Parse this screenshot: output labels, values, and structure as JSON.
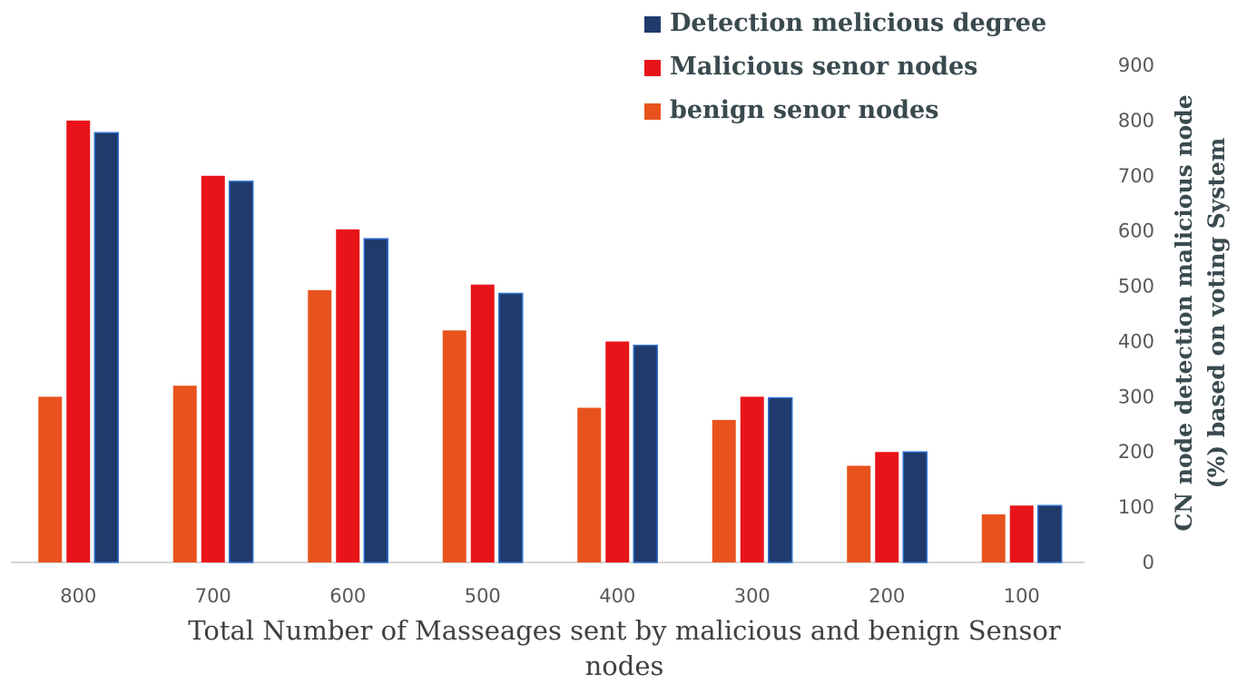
{
  "chart_data": {
    "type": "bar",
    "categories": [
      "800",
      "700",
      "600",
      "500",
      "400",
      "300",
      "200",
      "100"
    ],
    "series": [
      {
        "name": "benign senor nodes",
        "color": "#E8531D",
        "values": [
          300,
          320,
          493,
          420,
          280,
          258,
          175,
          87
        ]
      },
      {
        "name": "Malicious senor nodes",
        "color": "#E8141A",
        "values": [
          800,
          700,
          603,
          503,
          400,
          300,
          200,
          103
        ]
      },
      {
        "name": "Detection melicious degree",
        "color": "#1F3A6B",
        "values": [
          778,
          690,
          586,
          487,
          393,
          298,
          200,
          103
        ]
      }
    ],
    "legend_order": [
      "Detection melicious degree",
      "Malicious senor nodes",
      "benign senor nodes"
    ],
    "legend_position": "top-right",
    "xlabel": "Total Number of Masseages sent by malicious and benign Sensor nodes",
    "ylabel_line1": "CN node detection malicious node",
    "ylabel_line2": "(%) based on voting System",
    "ylim": [
      0,
      900
    ],
    "yticks": [
      0,
      100,
      200,
      300,
      400,
      500,
      600,
      700,
      800,
      900
    ],
    "y_axis_side": "right",
    "grid": false
  }
}
